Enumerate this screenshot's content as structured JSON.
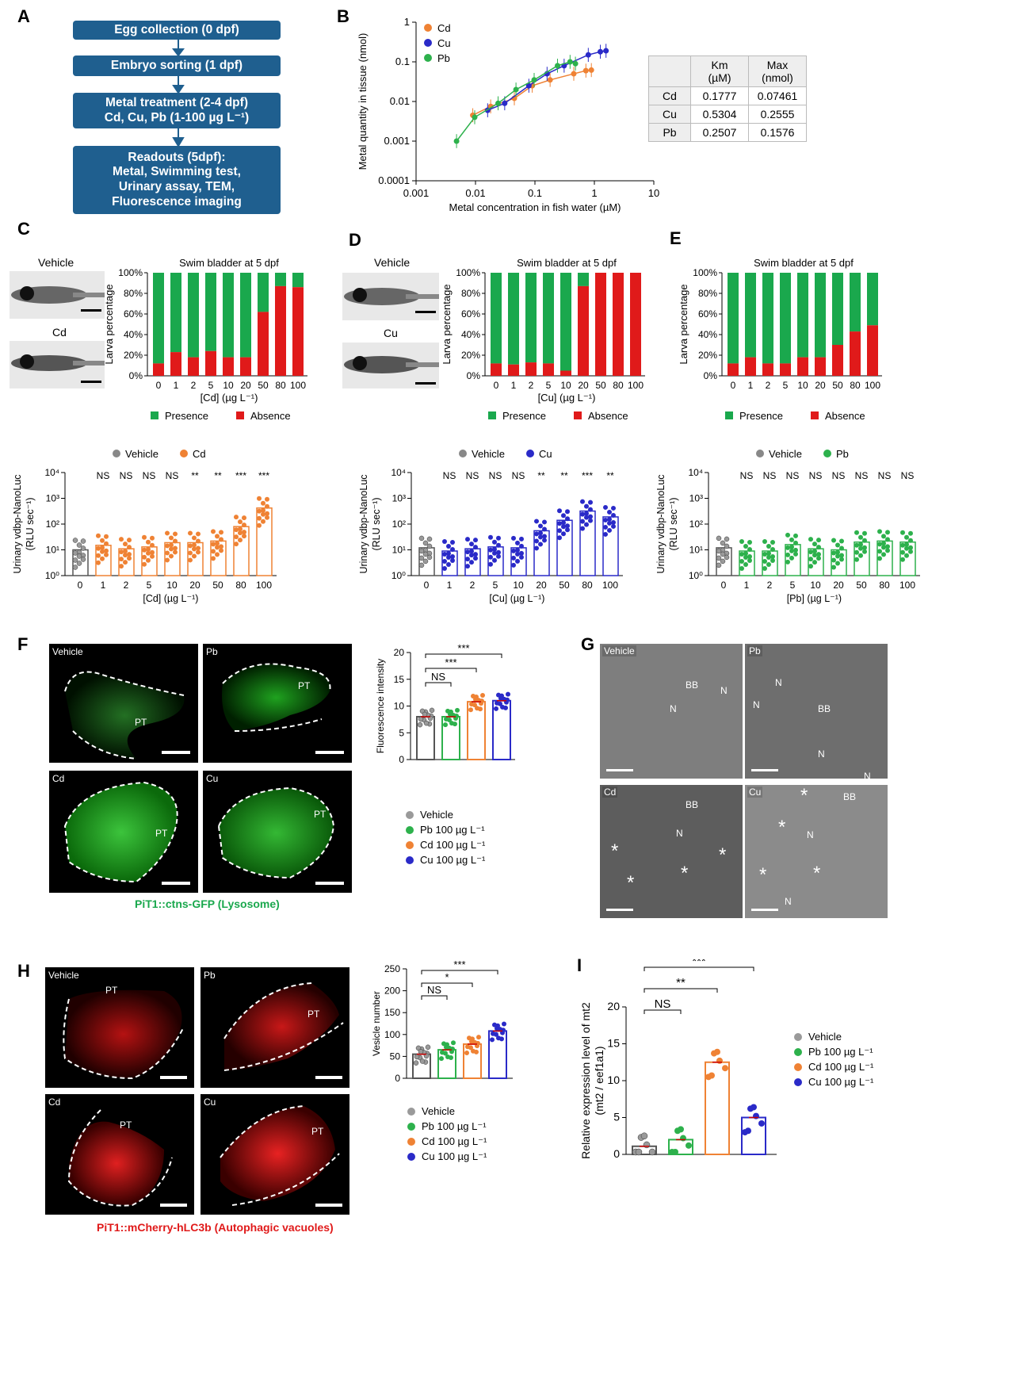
{
  "panels": {
    "A": "A",
    "B": "B",
    "C": "C",
    "D": "D",
    "E": "E",
    "F": "F",
    "G": "G",
    "H": "H",
    "I": "I"
  },
  "flowchart": {
    "steps": [
      "Egg collection (0 dpf)",
      "Embryo sorting (1 dpf)",
      "Metal treatment (2-4 dpf)\nCd, Cu, Pb (1-100 µg L⁻¹)",
      "Readouts (5dpf):\nMetal, Swimming test,\nUrinary assay, TEM,\nFluorescence imaging"
    ]
  },
  "colors": {
    "Cd": "#ef8234",
    "Cu": "#2a2ac8",
    "Pb": "#2db14c",
    "Vehicle": "#888888",
    "presence": "#1aa84d",
    "absence": "#e01a1a",
    "flow": "#1f5f8f"
  },
  "panelB": {
    "ylabel": "Metal quantity in tissue (nmol)",
    "xlabel": "Metal concentration in fish water (µM)",
    "yticks": [
      "1",
      "0.1",
      "0.01",
      "0.001",
      "0.0001"
    ],
    "xticks": [
      "0.001",
      "0.01",
      "0.1",
      "1",
      "10"
    ],
    "legend": [
      "Cd",
      "Cu",
      "Pb"
    ],
    "table": {
      "header": [
        "",
        "Km\n(µM)",
        "Max\n(nmol)"
      ],
      "rows": [
        [
          "Cd",
          "0.1777",
          "0.07461"
        ],
        [
          "Cu",
          "0.5304",
          "0.2555"
        ],
        [
          "Pb",
          "0.2507",
          "0.1576"
        ]
      ]
    }
  },
  "chart_data": [
    {
      "type": "scatter",
      "panel": "B",
      "xscale": "log",
      "yscale": "log",
      "xlim": [
        0.001,
        10
      ],
      "ylim": [
        0.0001,
        1
      ],
      "series": [
        {
          "name": "Cd",
          "x": [
            0.009,
            0.018,
            0.045,
            0.09,
            0.18,
            0.45,
            0.72,
            0.89
          ],
          "y": [
            0.0045,
            0.0075,
            0.012,
            0.025,
            0.035,
            0.05,
            0.06,
            0.062
          ]
        },
        {
          "name": "Cu",
          "x": [
            0.016,
            0.031,
            0.079,
            0.16,
            0.31,
            0.79,
            1.26,
            1.57
          ],
          "y": [
            0.006,
            0.009,
            0.025,
            0.05,
            0.08,
            0.15,
            0.18,
            0.19
          ]
        },
        {
          "name": "Pb",
          "x": [
            0.0048,
            0.0097,
            0.024,
            0.048,
            0.097,
            0.24,
            0.39,
            0.48
          ],
          "y": [
            0.001,
            0.004,
            0.009,
            0.02,
            0.035,
            0.08,
            0.1,
            0.09
          ]
        }
      ]
    },
    {
      "type": "bar",
      "panel": "C",
      "title": "Swim bladder at 5 dpf",
      "ylabel": "Larva percentage",
      "xlabel": "[Cd] (µg L⁻¹)",
      "categories": [
        "0",
        "1",
        "2",
        "5",
        "10",
        "20",
        "50",
        "80",
        "100"
      ],
      "series": [
        {
          "name": "Absence",
          "values": [
            12,
            23,
            18,
            24,
            18,
            18,
            62,
            87,
            86
          ]
        },
        {
          "name": "Presence",
          "values": [
            88,
            77,
            82,
            76,
            82,
            82,
            38,
            13,
            14
          ]
        }
      ],
      "yticks": [
        "0%",
        "20%",
        "40%",
        "60%",
        "80%",
        "100%"
      ],
      "legend": [
        "Presence",
        "Absence"
      ]
    },
    {
      "type": "bar",
      "panel": "D",
      "title": "Swim bladder at 5 dpf",
      "ylabel": "Larva percentage",
      "xlabel": "[Cu] (µg L⁻¹)",
      "categories": [
        "0",
        "1",
        "2",
        "5",
        "10",
        "20",
        "50",
        "80",
        "100"
      ],
      "series": [
        {
          "name": "Absence",
          "values": [
            12,
            11,
            13,
            12,
            5,
            87,
            100,
            100,
            100
          ]
        },
        {
          "name": "Presence",
          "values": [
            88,
            89,
            87,
            88,
            95,
            13,
            0,
            0,
            0
          ]
        }
      ],
      "yticks": [
        "0%",
        "20%",
        "40%",
        "60%",
        "80%",
        "100%"
      ],
      "legend": [
        "Presence",
        "Absence"
      ]
    },
    {
      "type": "bar",
      "panel": "E",
      "title": "Swim bladder at 5 dpf",
      "ylabel": "Larva percentage",
      "xlabel": "",
      "categories": [
        "0",
        "1",
        "2",
        "5",
        "10",
        "20",
        "50",
        "80",
        "100"
      ],
      "series": [
        {
          "name": "Absence",
          "values": [
            12,
            18,
            12,
            12,
            18,
            18,
            30,
            43,
            49
          ]
        },
        {
          "name": "Presence",
          "values": [
            88,
            82,
            88,
            88,
            82,
            82,
            70,
            57,
            51
          ]
        }
      ],
      "yticks": [
        "0%",
        "20%",
        "40%",
        "60%",
        "80%",
        "100%"
      ],
      "legend": [
        "Presence",
        "Absence"
      ]
    },
    {
      "type": "bar",
      "panel": "C2",
      "yscale": "log",
      "ylabel": "Urinary vdbp-NanoLuc",
      "ylabel2": "(RLU sec⁻¹)",
      "xlabel": "[Cd] (µg L⁻¹)",
      "categories": [
        "0",
        "1",
        "2",
        "5",
        "10",
        "20",
        "50",
        "80",
        "100"
      ],
      "values": [
        10,
        15,
        11,
        13,
        19,
        19,
        22,
        80,
        420
      ],
      "sig": [
        "",
        "NS",
        "NS",
        "NS",
        "NS",
        "**",
        "**",
        "***",
        "***"
      ],
      "legend": [
        "Vehicle",
        "Cd"
      ],
      "yticks": [
        "10⁰",
        "10¹",
        "10²",
        "10³",
        "10⁴"
      ]
    },
    {
      "type": "bar",
      "panel": "D2",
      "yscale": "log",
      "ylabel": "Urinary vdbp-NanoLuc",
      "ylabel2": "(RLU sec⁻¹)",
      "xlabel": "[Cu] (µg L⁻¹)",
      "categories": [
        "0",
        "1",
        "2",
        "5",
        "10",
        "20",
        "50",
        "80",
        "100"
      ],
      "values": [
        12,
        9,
        11,
        13,
        12,
        55,
        140,
        320,
        190
      ],
      "sig": [
        "",
        "NS",
        "NS",
        "NS",
        "NS",
        "**",
        "**",
        "***",
        "**"
      ],
      "legend": [
        "Vehicle",
        "Cu"
      ],
      "yticks": [
        "10⁰",
        "10¹",
        "10²",
        "10³",
        "10⁴"
      ]
    },
    {
      "type": "bar",
      "panel": "E2",
      "yscale": "log",
      "ylabel": "Urinary vdbp-NanoLuc",
      "ylabel2": "(RLU sec⁻¹)",
      "xlabel": "[Pb] (µg L⁻¹)",
      "categories": [
        "0",
        "1",
        "2",
        "5",
        "10",
        "20",
        "50",
        "80",
        "100"
      ],
      "values": [
        12,
        9,
        9,
        16,
        11,
        10,
        20,
        22,
        20
      ],
      "sig": [
        "",
        "NS",
        "NS",
        "NS",
        "NS",
        "NS",
        "NS",
        "NS",
        "NS"
      ],
      "legend": [
        "Vehicle",
        "Pb"
      ],
      "yticks": [
        "10⁰",
        "10¹",
        "10²",
        "10³",
        "10⁴"
      ]
    },
    {
      "type": "bar",
      "panel": "F",
      "ylabel": "Fluorescence intensity",
      "ylim": [
        0,
        20
      ],
      "yticks": [
        "0",
        "5",
        "10",
        "15",
        "20"
      ],
      "categories": [
        "Vehicle",
        "Pb",
        "Cd",
        "Cu"
      ],
      "values": [
        8,
        8,
        10.8,
        11
      ],
      "sig": [
        {
          "from": 0,
          "to": 1,
          "text": "NS"
        },
        {
          "from": 0,
          "to": 2,
          "text": "***"
        },
        {
          "from": 0,
          "to": 3,
          "text": "***"
        }
      ]
    },
    {
      "type": "bar",
      "panel": "H",
      "ylabel": "Vesicle number",
      "ylim": [
        0,
        250
      ],
      "yticks": [
        "0",
        "50",
        "100",
        "150",
        "200",
        "250"
      ],
      "categories": [
        "Vehicle",
        "Pb",
        "Cd",
        "Cu"
      ],
      "values": [
        55,
        65,
        78,
        108
      ],
      "sig": [
        {
          "from": 0,
          "to": 1,
          "text": "NS"
        },
        {
          "from": 0,
          "to": 2,
          "text": "*"
        },
        {
          "from": 0,
          "to": 3,
          "text": "***"
        }
      ]
    },
    {
      "type": "bar",
      "panel": "I",
      "ylabel": "Relative expression level of mt2",
      "ylabel2": "(mt2 / eef1a1)",
      "ylim": [
        0,
        20
      ],
      "yticks": [
        "0",
        "5",
        "10",
        "15",
        "20"
      ],
      "categories": [
        "Vehicle",
        "Pb",
        "Cd",
        "Cu"
      ],
      "values": [
        1.1,
        2,
        12.5,
        5
      ],
      "sig": [
        {
          "from": 0,
          "to": 1,
          "text": "NS"
        },
        {
          "from": 0,
          "to": 2,
          "text": "**"
        },
        {
          "from": 0,
          "to": 3,
          "text": "***"
        }
      ]
    }
  ],
  "legend4": [
    "Vehicle",
    "Pb 100 µg L⁻¹",
    "Cd 100 µg L⁻¹",
    "Cu 100 µg L⁻¹"
  ],
  "larva": {
    "c_top": "Vehicle",
    "c_bottom": "Cd",
    "d_top": "Vehicle",
    "d_bottom": "Cu"
  },
  "micro": {
    "vehicle": "Vehicle",
    "pb": "Pb",
    "cd": "Cd",
    "cu": "Cu",
    "pt": "PT"
  },
  "tem": {
    "bb": "BB",
    "n": "N",
    "star": "*"
  },
  "captions": {
    "f": "PiT1::ctns-GFP (Lysosome)",
    "h": "PiT1::mCherry-hLC3b (Autophagic vacuoles)"
  }
}
